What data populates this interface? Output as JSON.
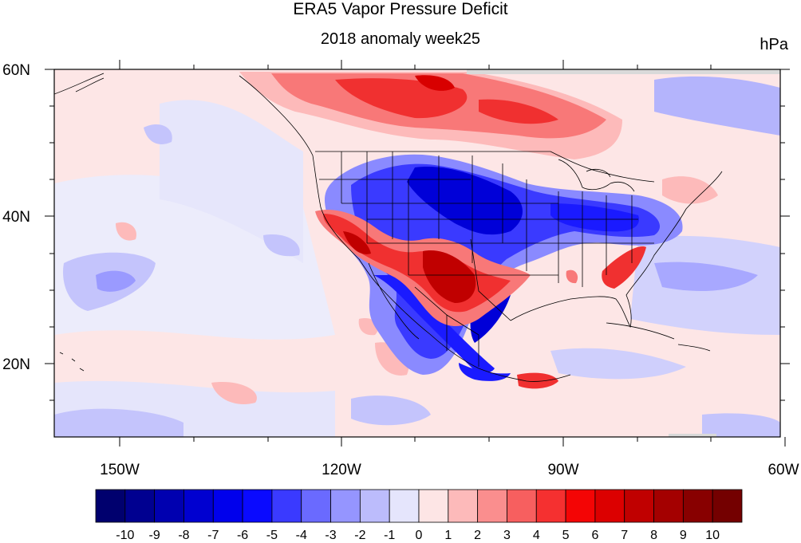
{
  "title": "ERA5 Vapor Pressure Deficit",
  "subtitle": "2018 anomaly week25",
  "units": "hPa",
  "map": {
    "lat_range": [
      10,
      60
    ],
    "lon_range": [
      -160,
      -60
    ],
    "lat_ticks": [
      "60N",
      "40N",
      "20N"
    ],
    "lon_ticks": [
      "150W",
      "120W",
      "90W",
      "60W"
    ],
    "boundaries": [
      "coastlines",
      "US states",
      "Canadian provinces",
      "Mexican states"
    ]
  },
  "colorbar": {
    "labels": [
      "-10",
      "-9",
      "-8",
      "-7",
      "-6",
      "-5",
      "-4",
      "-3",
      "-2",
      "-1",
      "0",
      "1",
      "2",
      "3",
      "4",
      "5",
      "6",
      "7",
      "8",
      "9",
      "10"
    ],
    "colors": [
      "#00006e",
      "#000090",
      "#0000b0",
      "#0000d0",
      "#0000ec",
      "#0a0aff",
      "#3a3aff",
      "#6a6aff",
      "#9595ff",
      "#bcbcfc",
      "#e5e5fc",
      "#fde5e5",
      "#fdbaba",
      "#fa8e8e",
      "#f75f5f",
      "#f53030",
      "#f40505",
      "#dc0000",
      "#c00000",
      "#a40000",
      "#880000",
      "#740000"
    ]
  },
  "palette": {
    "ocean_neutral": "#e9e9fb",
    "ocean_warm": "#fde6e6",
    "light_blue": "#bcbcfc",
    "mid_blue": "#8a8aff",
    "strong_blue": "#1a1aff",
    "deep_blue": "#0000d8",
    "light_red": "#fdbaba",
    "mid_red": "#f87878",
    "strong_red": "#f03030",
    "deep_red": "#c00000",
    "gray_missing": "#d9d9d9"
  }
}
